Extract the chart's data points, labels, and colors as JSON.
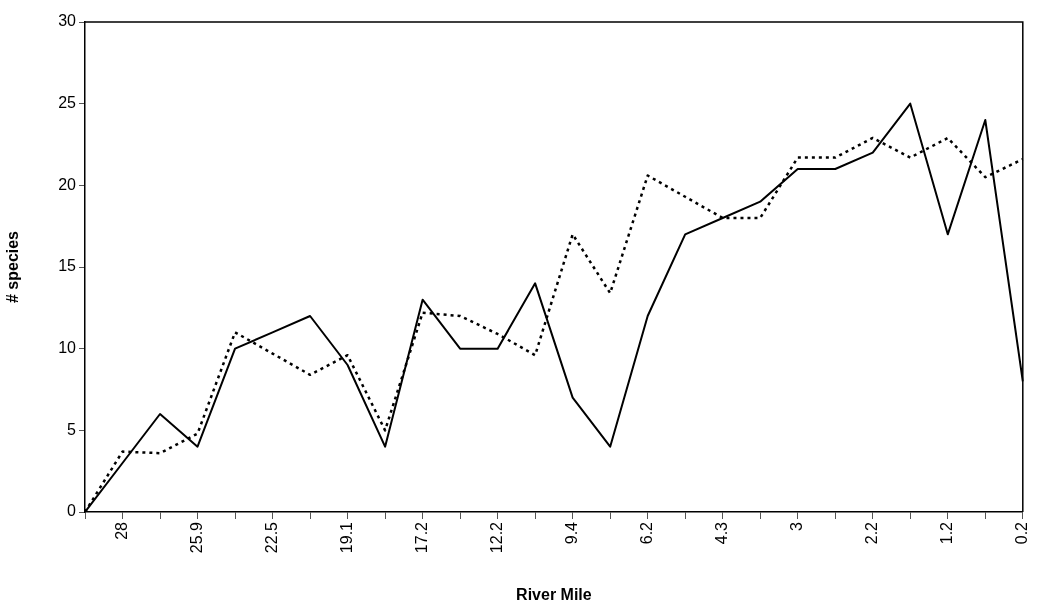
{
  "chart_data": {
    "type": "line",
    "xlabel": "River Mile",
    "ylabel": "# species",
    "categories": [
      null,
      "28",
      null,
      "25.9",
      null,
      "22.5",
      null,
      "19.1",
      null,
      "17.2",
      null,
      "12.2",
      null,
      "9.4",
      null,
      "6.2",
      null,
      "4.3",
      null,
      "3",
      null,
      "2.2",
      null,
      "1.2",
      null,
      "0.2"
    ],
    "ylim": [
      0,
      30
    ],
    "yticks": [
      0,
      5,
      10,
      15,
      20,
      25,
      30
    ],
    "grid": false,
    "legend": false,
    "marker": "none",
    "series": [
      {
        "color": "#000000",
        "line_style": "solid",
        "values": [
          0,
          3,
          6,
          4,
          10,
          11,
          12,
          9,
          4,
          13,
          10,
          10,
          14,
          7,
          4,
          12,
          17,
          18,
          19,
          21,
          21,
          22,
          25,
          17,
          24,
          8
        ]
      },
      {
        "color": "#000000",
        "line_style": "dotted",
        "values": [
          0,
          3.7,
          3.6,
          4.8,
          11,
          9.7,
          8.4,
          9.6,
          5,
          12.2,
          12,
          10.9,
          9.6,
          17,
          13.4,
          20.6,
          19.3,
          18,
          18,
          21.7,
          21.7,
          22.9,
          21.7,
          22.9,
          20.5,
          21.6
        ]
      }
    ]
  }
}
